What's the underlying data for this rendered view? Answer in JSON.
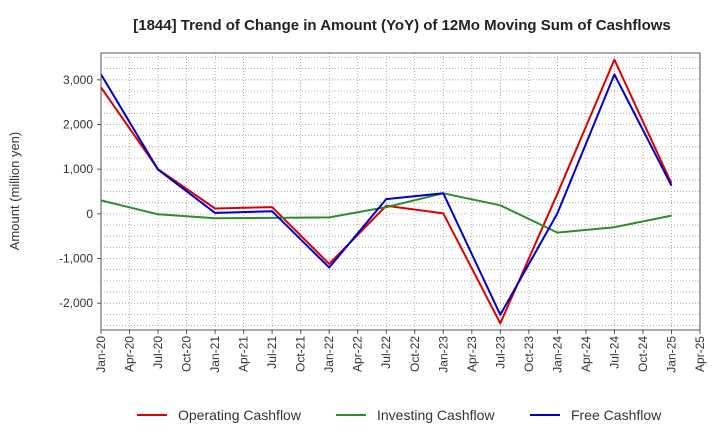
{
  "chart_data": {
    "type": "line",
    "title": "[1844]  Trend of Change in Amount (YoY) of 12Mo Moving Sum of Cashflows",
    "xlabel": "",
    "ylabel": "Amount (million yen)",
    "ylim": [
      -2600,
      3600
    ],
    "yticks": [
      3000,
      2000,
      1000,
      0,
      -1000,
      -2000
    ],
    "ytick_labels": [
      "3,000",
      "2,000",
      "1,000",
      "0",
      "-1,000",
      "-2,000"
    ],
    "x_tick_labels": [
      "Jan-20",
      "Apr-20",
      "Jul-20",
      "Oct-20",
      "Jan-21",
      "Apr-21",
      "Jul-21",
      "Oct-21",
      "Jan-22",
      "Apr-22",
      "Jul-22",
      "Oct-22",
      "Jan-23",
      "Apr-23",
      "Jul-23",
      "Oct-23",
      "Jan-24",
      "Apr-24",
      "Jul-24",
      "Oct-24",
      "Jan-25",
      "Apr-25"
    ],
    "categories": [
      "Jan-20",
      "Jul-20",
      "Jan-21",
      "Jul-21",
      "Jan-22",
      "Jul-22",
      "Jan-23",
      "Jul-23",
      "Jan-24",
      "Jul-24",
      "Jan-25"
    ],
    "grid": true,
    "legend_position": "bottom",
    "series": [
      {
        "name": "Operating Cashflow",
        "color": "#dd0000",
        "values": [
          2830,
          1000,
          120,
          150,
          -1120,
          180,
          10,
          -2450,
          450,
          3450,
          680
        ]
      },
      {
        "name": "Investing Cashflow",
        "color": "#2e8b2e",
        "values": [
          300,
          -10,
          -100,
          -90,
          -80,
          150,
          460,
          190,
          -420,
          -300,
          -40
        ]
      },
      {
        "name": "Free Cashflow",
        "color": "#0000cc",
        "values": [
          3120,
          990,
          20,
          60,
          -1200,
          330,
          460,
          -2260,
          10,
          3120,
          630
        ]
      }
    ]
  }
}
